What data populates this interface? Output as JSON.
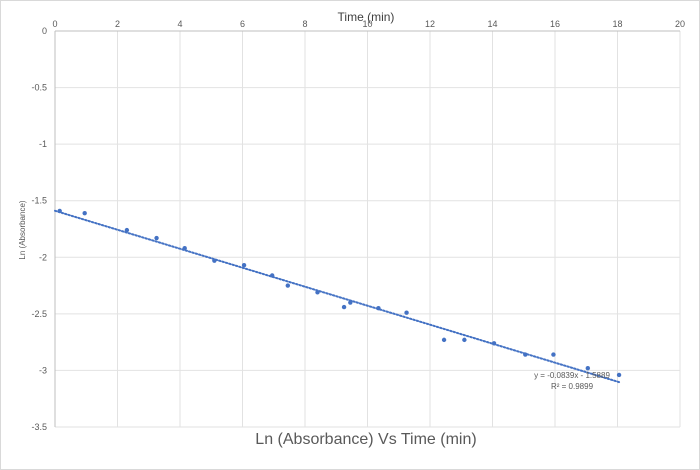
{
  "chart_data": {
    "type": "scatter",
    "title": "Ln (Absorbance) Vs Time (min)",
    "xlabel": "Time (min)",
    "ylabel": "Ln (Absorbance)",
    "xlim": [
      0,
      20
    ],
    "ylim": [
      -3.5,
      0
    ],
    "x_ticks": [
      0,
      2,
      4,
      6,
      8,
      10,
      12,
      14,
      16,
      18,
      20
    ],
    "y_ticks": [
      0,
      -0.5,
      -1,
      -1.5,
      -2,
      -2.5,
      -3,
      -3.5
    ],
    "x_tick_labels": [
      "0",
      "2",
      "4",
      "6",
      "8",
      "10",
      "12",
      "14",
      "16",
      "18",
      "20"
    ],
    "y_tick_labels": [
      "0",
      "-0.5",
      "-1",
      "-1.5",
      "-2",
      "-2.5",
      "-3",
      "-3.5"
    ],
    "x_axis_position": "top",
    "grid": true,
    "series": [
      {
        "color": "#4472c4",
        "points": [
          {
            "x": 0.15,
            "y": -1.59
          },
          {
            "x": 0.95,
            "y": -1.61
          },
          {
            "x": 2.3,
            "y": -1.76
          },
          {
            "x": 3.25,
            "y": -1.83
          },
          {
            "x": 4.15,
            "y": -1.92
          },
          {
            "x": 5.1,
            "y": -2.03
          },
          {
            "x": 6.05,
            "y": -2.07
          },
          {
            "x": 6.95,
            "y": -2.16
          },
          {
            "x": 7.45,
            "y": -2.25
          },
          {
            "x": 8.4,
            "y": -2.31
          },
          {
            "x": 9.25,
            "y": -2.44
          },
          {
            "x": 9.45,
            "y": -2.4
          },
          {
            "x": 10.35,
            "y": -2.45
          },
          {
            "x": 11.25,
            "y": -2.49
          },
          {
            "x": 12.45,
            "y": -2.73
          },
          {
            "x": 13.1,
            "y": -2.73
          },
          {
            "x": 14.05,
            "y": -2.76
          },
          {
            "x": 15.05,
            "y": -2.86
          },
          {
            "x": 15.95,
            "y": -2.86
          },
          {
            "x": 17.05,
            "y": -2.98
          },
          {
            "x": 18.05,
            "y": -3.04
          }
        ]
      }
    ],
    "trendline": {
      "type": "linear",
      "style": "dotted",
      "color": "#4472c4",
      "slope": -0.0839,
      "intercept": -1.5889,
      "x_range": [
        0,
        18.1
      ],
      "equation_label": "y = -0.0839x - 1.5889",
      "r2_label": "R² = 0.9899"
    }
  }
}
